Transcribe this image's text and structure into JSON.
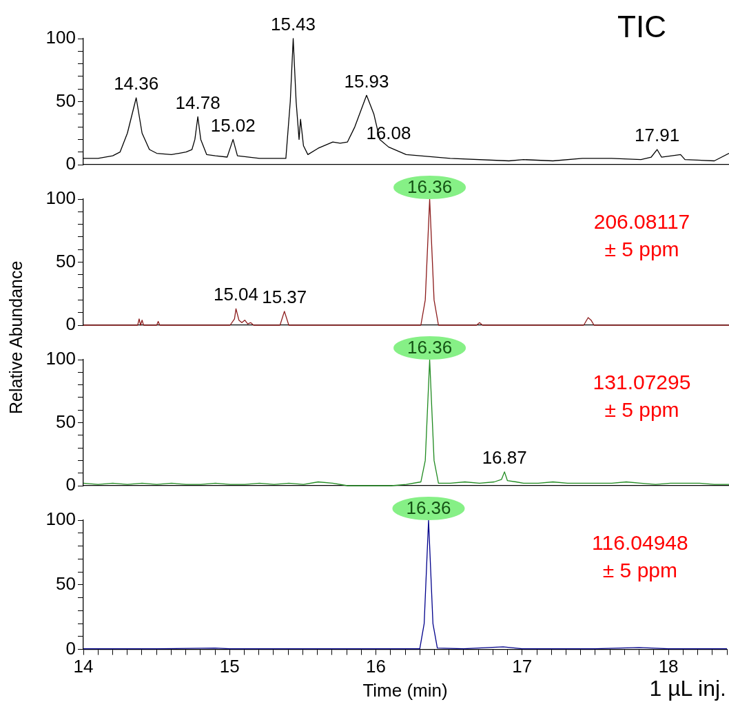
{
  "chart_data": [
    {
      "type": "line",
      "title": "TIC",
      "xlim": [
        14,
        18.4
      ],
      "ylim": [
        0,
        100
      ],
      "yticks": [
        0,
        {
          "value": 10,
          "label": null
        },
        {
          "value": 20,
          "label": null
        },
        {
          "value": 30,
          "label": null
        },
        {
          "value": 40,
          "label": null
        },
        50,
        {
          "value": 60,
          "label": null
        },
        {
          "value": 70,
          "label": null
        },
        {
          "value": 80,
          "label": null
        },
        {
          "value": 90,
          "label": null
        },
        100
      ],
      "tick_labels": "y",
      "grid": false,
      "legend": false,
      "x": [
        14.0,
        14.1,
        14.2,
        14.25,
        14.3,
        14.36,
        14.4,
        14.45,
        14.5,
        14.6,
        14.65,
        14.7,
        14.74,
        14.76,
        14.78,
        14.8,
        14.84,
        14.9,
        14.98,
        15.02,
        15.05,
        15.2,
        15.38,
        15.41,
        15.43,
        15.45,
        15.47,
        15.48,
        15.5,
        15.53,
        15.6,
        15.7,
        15.75,
        15.8,
        15.85,
        15.93,
        15.98,
        16.02,
        16.08,
        16.2,
        16.5,
        16.9,
        17.0,
        17.2,
        17.4,
        17.6,
        17.8,
        17.87,
        17.91,
        17.94,
        18.07,
        18.1,
        18.3,
        18.4
      ],
      "series": [
        {
          "color": "#000000",
          "values": [
            5,
            5,
            7,
            10,
            25,
            53,
            25,
            12,
            9,
            8,
            9,
            10,
            12,
            20,
            38,
            20,
            8,
            7,
            6,
            20,
            7,
            5,
            5,
            50,
            100,
            50,
            20,
            36,
            15,
            8,
            13,
            18,
            17,
            18,
            30,
            55,
            40,
            20,
            14,
            8,
            5,
            3,
            4,
            3,
            5,
            5,
            4,
            6,
            12,
            6,
            8,
            4,
            3,
            9
          ]
        }
      ],
      "annotations": [
        {
          "text": "14.36",
          "x": 14.36,
          "y": 53
        },
        {
          "text": "14.78",
          "x": 14.78,
          "y": 38
        },
        {
          "text": "15.02",
          "x": 15.02,
          "y": 20
        },
        {
          "text": "15.43",
          "x": 15.43,
          "y": 100
        },
        {
          "text": "15.93",
          "x": 15.93,
          "y": 55
        },
        {
          "text": "16.08",
          "x": 16.08,
          "y": 14
        },
        {
          "text": "17.91",
          "x": 17.91,
          "y": 12
        }
      ]
    },
    {
      "type": "line",
      "subtitle": "206.08117\n± 5 ppm",
      "ylabel": "Relative Abundance",
      "xlim": [
        14,
        18.4
      ],
      "ylim": [
        0,
        100
      ],
      "yticks": [
        0,
        {
          "value": 10,
          "label": null
        },
        {
          "value": 20,
          "label": null
        },
        {
          "value": 30,
          "label": null
        },
        {
          "value": 40,
          "label": null
        },
        50,
        {
          "value": 60,
          "label": null
        },
        {
          "value": 70,
          "label": null
        },
        {
          "value": 80,
          "label": null
        },
        {
          "value": 90,
          "label": null
        },
        100
      ],
      "tick_labels": "y",
      "grid": false,
      "legend": false,
      "x": [
        14.0,
        14.1,
        14.37,
        14.38,
        14.39,
        14.4,
        14.41,
        14.5,
        14.51,
        14.52,
        15.0,
        15.03,
        15.04,
        15.06,
        15.08,
        15.1,
        15.12,
        15.14,
        15.16,
        15.34,
        15.37,
        15.4,
        16.3,
        16.33,
        16.36,
        16.39,
        16.42,
        16.68,
        16.7,
        16.72,
        17.41,
        17.44,
        17.46,
        17.48,
        18.4
      ],
      "series": [
        {
          "color": "#8b1a1a",
          "values": [
            0,
            0,
            0,
            5,
            0,
            4,
            0,
            0,
            3,
            0,
            0,
            5,
            13,
            4,
            2,
            4,
            1,
            2,
            0,
            0,
            11,
            0,
            0,
            20,
            100,
            20,
            0,
            0,
            2,
            0,
            0,
            6,
            4,
            0,
            0
          ]
        }
      ],
      "annotations": [
        {
          "text": "15.04",
          "x": 15.04,
          "y": 13
        },
        {
          "text": "15.37",
          "x": 15.37,
          "y": 11
        },
        {
          "text": "16.36",
          "x": 16.36,
          "y": 100
        }
      ]
    },
    {
      "type": "line",
      "subtitle": "131.07295\n± 5 ppm",
      "xlim": [
        14,
        18.4
      ],
      "ylim": [
        0,
        100
      ],
      "yticks": [
        0,
        {
          "value": 10,
          "label": null
        },
        {
          "value": 20,
          "label": null
        },
        {
          "value": 30,
          "label": null
        },
        {
          "value": 40,
          "label": null
        },
        50,
        {
          "value": 60,
          "label": null
        },
        {
          "value": 70,
          "label": null
        },
        {
          "value": 80,
          "label": null
        },
        {
          "value": 90,
          "label": null
        },
        100
      ],
      "tick_labels": "y",
      "grid": false,
      "legend": false,
      "x": [
        14.0,
        14.1,
        14.2,
        14.3,
        14.4,
        14.5,
        14.6,
        14.7,
        14.8,
        14.9,
        15.0,
        15.1,
        15.2,
        15.3,
        15.4,
        15.5,
        15.6,
        15.7,
        15.8,
        15.9,
        16.0,
        16.1,
        16.2,
        16.3,
        16.33,
        16.36,
        16.39,
        16.42,
        16.5,
        16.6,
        16.7,
        16.8,
        16.85,
        16.87,
        16.89,
        16.95,
        17.0,
        17.1,
        17.2,
        17.3,
        17.4,
        17.5,
        17.6,
        17.7,
        17.8,
        17.9,
        18.0,
        18.1,
        18.2,
        18.3,
        18.4
      ],
      "series": [
        {
          "color": "#1f8a1f",
          "values": [
            2,
            1,
            2,
            1,
            2,
            1,
            2,
            1,
            1,
            2,
            1,
            1,
            2,
            1,
            2,
            1,
            3,
            2,
            0,
            0,
            0,
            0,
            1,
            3,
            20,
            100,
            20,
            2,
            2,
            3,
            2,
            3,
            5,
            11,
            4,
            3,
            2,
            2,
            3,
            2,
            2,
            2,
            2,
            3,
            2,
            1,
            2,
            2,
            2,
            1,
            1
          ]
        }
      ],
      "annotations": [
        {
          "text": "16.36",
          "x": 16.36,
          "y": 100
        },
        {
          "text": "16.87",
          "x": 16.87,
          "y": 11
        }
      ]
    },
    {
      "type": "line",
      "subtitle": "116.04948\n± 5 ppm",
      "xlabel": "Time (min)",
      "xlim": [
        14,
        18.4
      ],
      "xticks": [
        14,
        {
          "value": 14.1,
          "label": null
        },
        {
          "value": 14.2,
          "label": null
        },
        {
          "value": 14.3,
          "label": null
        },
        {
          "value": 14.4,
          "label": null
        },
        {
          "value": 14.5,
          "label": null
        },
        {
          "value": 14.6,
          "label": null
        },
        {
          "value": 14.7,
          "label": null
        },
        {
          "value": 14.8,
          "label": null
        },
        {
          "value": 14.9,
          "label": null
        },
        15,
        {
          "value": 15.1,
          "label": null
        },
        {
          "value": 15.2,
          "label": null
        },
        {
          "value": 15.3,
          "label": null
        },
        {
          "value": 15.4,
          "label": null
        },
        {
          "value": 15.5,
          "label": null
        },
        {
          "value": 15.6,
          "label": null
        },
        {
          "value": 15.7,
          "label": null
        },
        {
          "value": 15.8,
          "label": null
        },
        {
          "value": 15.9,
          "label": null
        },
        16,
        {
          "value": 16.1,
          "label": null
        },
        {
          "value": 16.2,
          "label": null
        },
        {
          "value": 16.3,
          "label": null
        },
        {
          "value": 16.4,
          "label": null
        },
        {
          "value": 16.5,
          "label": null
        },
        {
          "value": 16.6,
          "label": null
        },
        {
          "value": 16.7,
          "label": null
        },
        {
          "value": 16.8,
          "label": null
        },
        {
          "value": 16.9,
          "label": null
        },
        17,
        {
          "value": 17.1,
          "label": null
        },
        {
          "value": 17.2,
          "label": null
        },
        {
          "value": 17.3,
          "label": null
        },
        {
          "value": 17.4,
          "label": null
        },
        {
          "value": 17.5,
          "label": null
        },
        {
          "value": 17.6,
          "label": null
        },
        {
          "value": 17.7,
          "label": null
        },
        {
          "value": 17.8,
          "label": null
        },
        {
          "value": 17.9,
          "label": null
        },
        18,
        {
          "value": 18.1,
          "label": null
        },
        {
          "value": 18.2,
          "label": null
        },
        {
          "value": 18.3,
          "label": null
        },
        {
          "value": 18.4,
          "label": null
        }
      ],
      "ylim": [
        0,
        100
      ],
      "yticks": [
        0,
        {
          "value": 10,
          "label": null
        },
        {
          "value": 20,
          "label": null
        },
        {
          "value": 30,
          "label": null
        },
        {
          "value": 40,
          "label": null
        },
        50,
        {
          "value": 60,
          "label": null
        },
        {
          "value": 70,
          "label": null
        },
        {
          "value": 80,
          "label": null
        },
        {
          "value": 90,
          "label": null
        },
        100
      ],
      "grid": false,
      "legend": false,
      "x": [
        14.0,
        14.5,
        14.9,
        15.0,
        15.5,
        16.0,
        16.3,
        16.33,
        16.36,
        16.39,
        16.42,
        16.6,
        16.87,
        17.0,
        17.5,
        17.8,
        18.0,
        18.4
      ],
      "series": [
        {
          "color": "#00008b",
          "values": [
            0.5,
            0.5,
            1,
            0.5,
            0.5,
            0.5,
            0.5,
            20,
            100,
            20,
            1,
            0.5,
            2,
            0.5,
            0.5,
            1.5,
            0.5,
            0.5
          ]
        }
      ],
      "annotations": [
        {
          "text": "16.36",
          "x": 16.36,
          "y": 100
        },
        "1 µL inj."
      ]
    }
  ]
}
